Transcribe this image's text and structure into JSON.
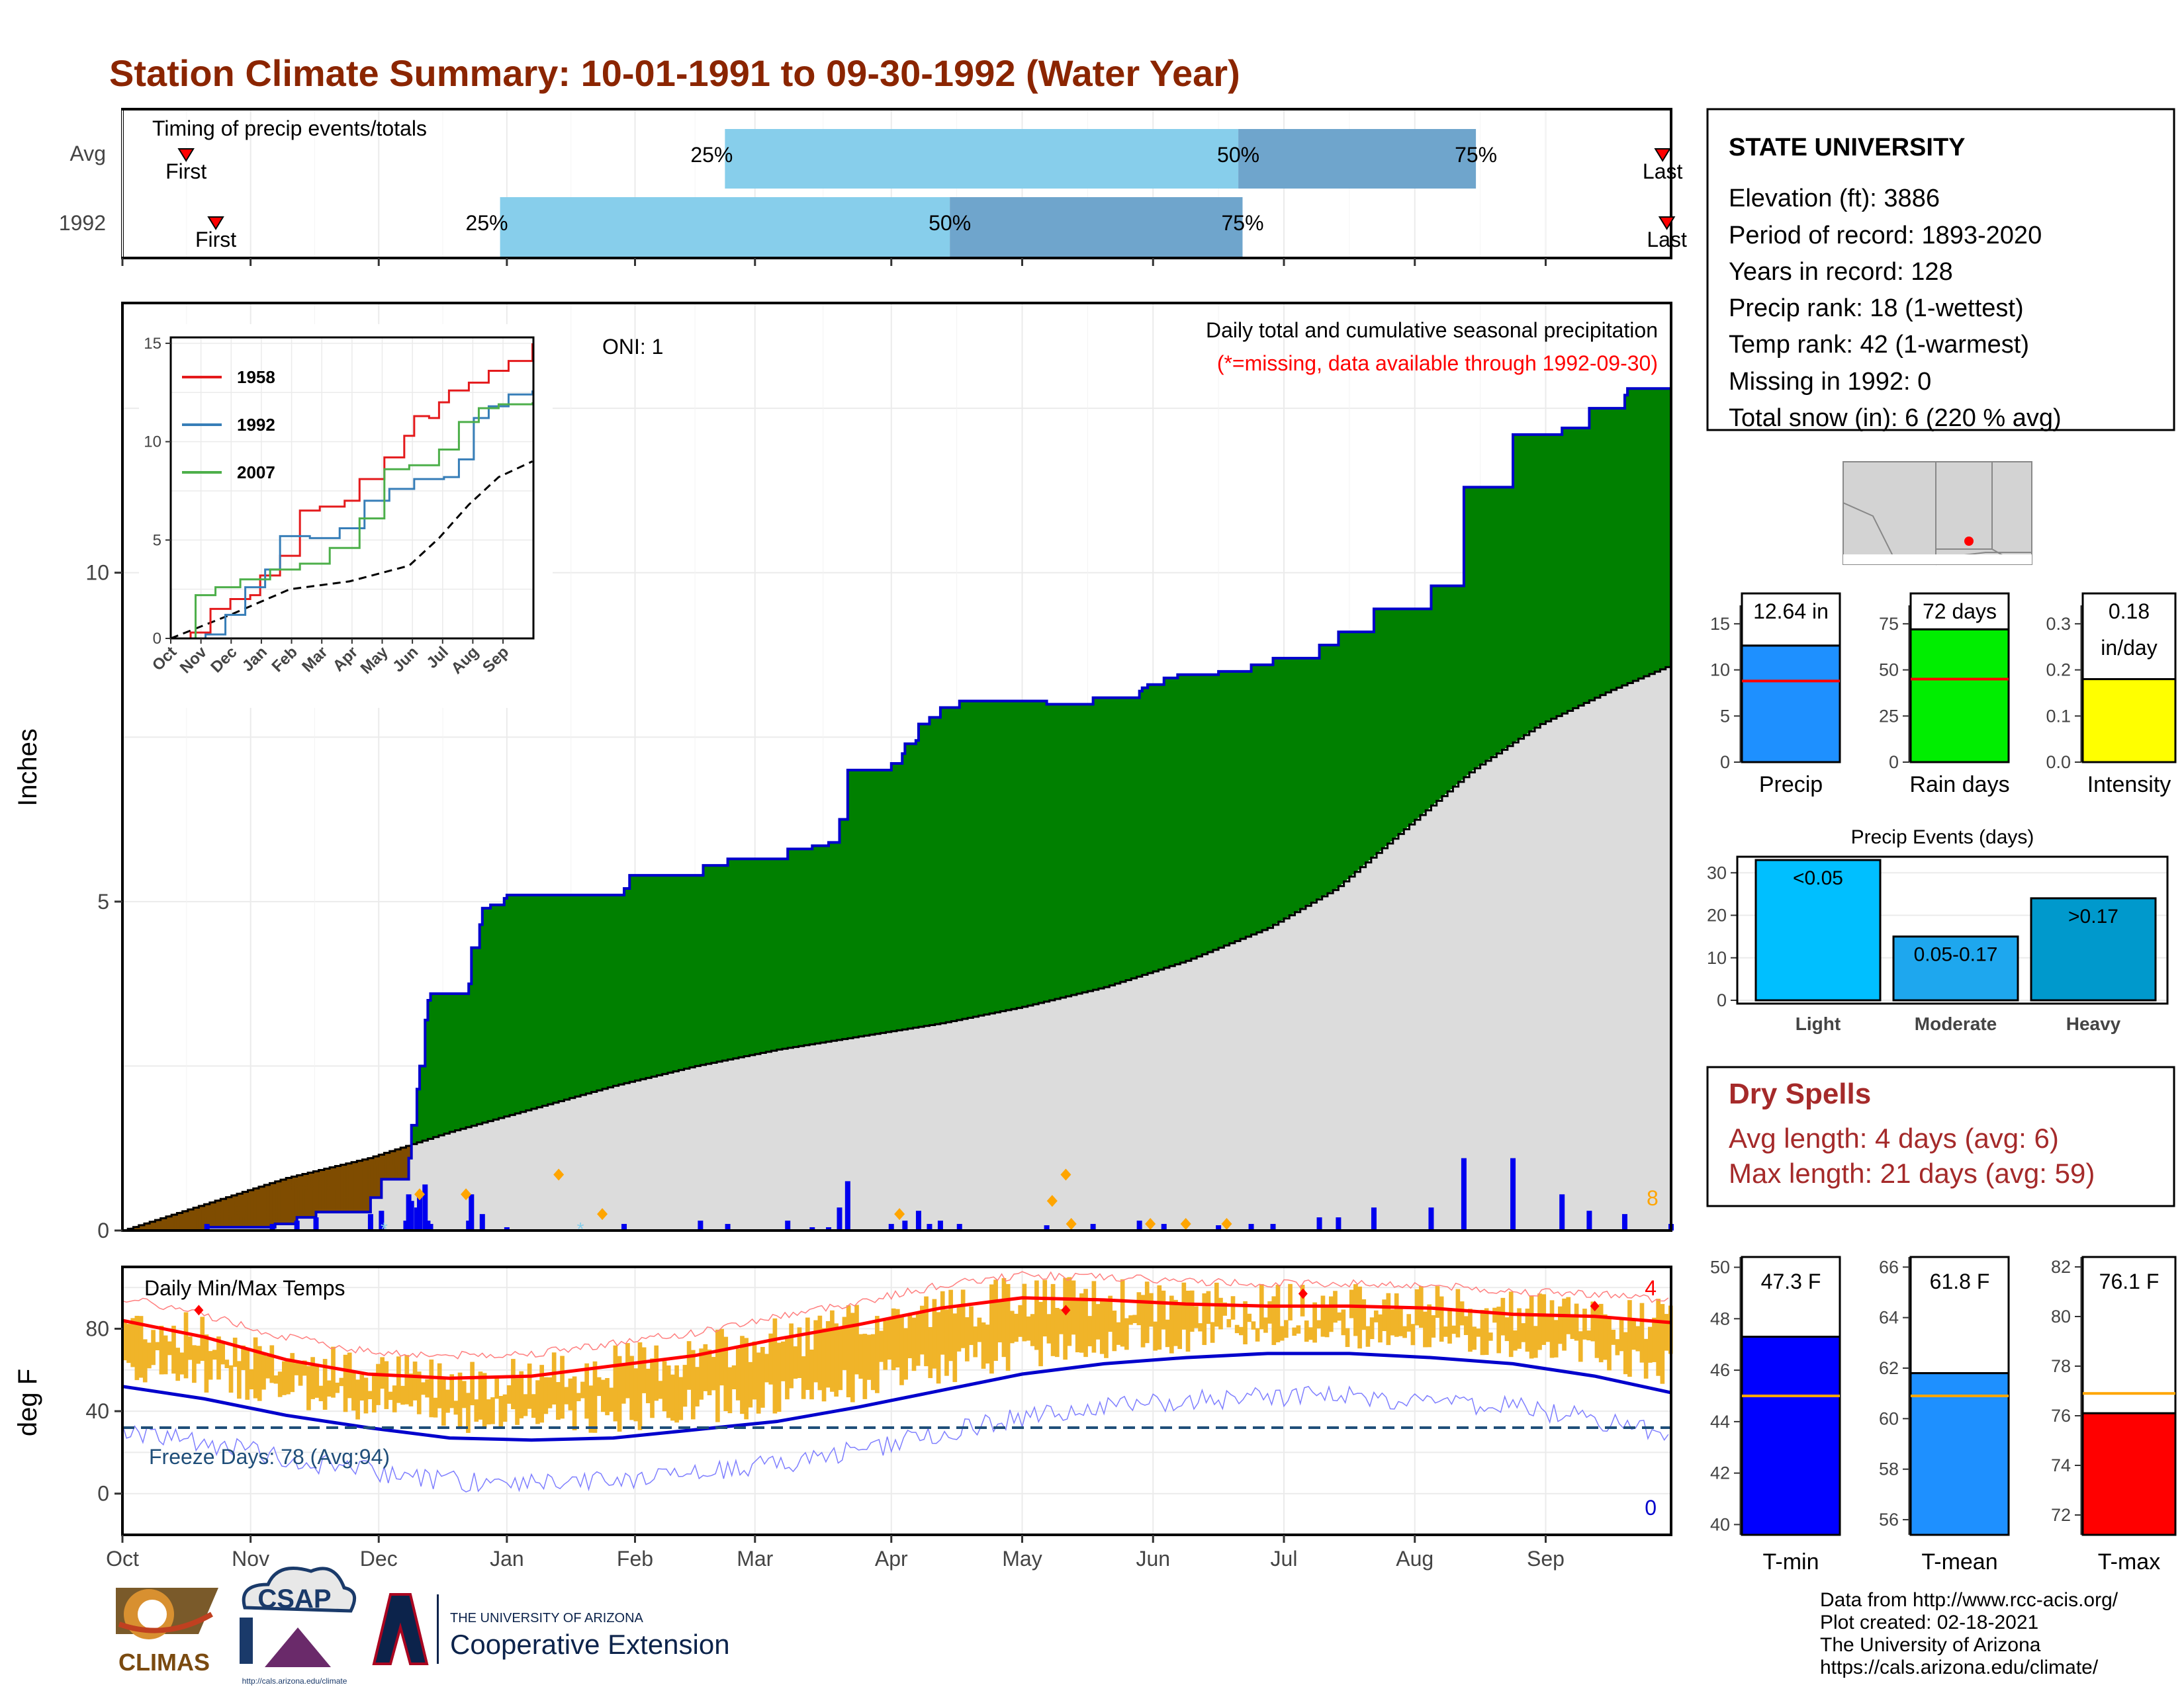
{
  "title": "Station Climate Summary: 10-01-1991 to 09-30-1992 (Water Year)",
  "colors": {
    "title": "#8b2500",
    "timing_light": "#87ceeb",
    "timing_dark": "#6fa5cc",
    "above_normal": "#008000",
    "below_normal": "#7f4c00",
    "normal_area": "#dcdcdc",
    "cumulative_line": "#0000cc",
    "daily_bar": "#0000ee",
    "snow_marker": "#ffa500",
    "temp_bar": "#f0b429",
    "normal_max": "#ff0000",
    "normal_min": "#0000cc",
    "freeze_line": "#1f4e79",
    "dry_spell_text": "#a52a2a"
  },
  "months": [
    "Oct",
    "Nov",
    "Dec",
    "Jan",
    "Feb",
    "Mar",
    "Apr",
    "May",
    "Jun",
    "Jul",
    "Aug",
    "Sep"
  ],
  "timing": {
    "label": "Timing of precip events/totals",
    "rows": [
      {
        "label": "Avg",
        "first_day": 15,
        "last_day": 363,
        "p25": 142,
        "p50": 263,
        "p75": 319,
        "first_label": "First",
        "last_label": "Last"
      },
      {
        "label": "1992",
        "first_day": 22,
        "last_day": 364,
        "p25": 89,
        "p50": 195,
        "p75": 264,
        "first_label": "First",
        "last_label": "Last"
      }
    ],
    "pct_labels": [
      "25%",
      "50%",
      "75%"
    ]
  },
  "precip_panel": {
    "ylabel": "Inches",
    "yticks": [
      0,
      5,
      10
    ],
    "ylim": [
      0,
      14.1
    ],
    "oni_label": "ONI: 1",
    "note_main": "Daily total and cumulative seasonal precipitation",
    "note_missing": "(*=missing, data available through 1992-09-30)",
    "snow_count_label": "8",
    "cumulative_steps": [
      [
        0,
        0
      ],
      [
        30,
        0
      ],
      [
        31,
        0.05
      ],
      [
        55,
        0.05
      ],
      [
        56,
        0.1
      ],
      [
        63,
        0.1
      ],
      [
        64,
        0.2
      ],
      [
        70,
        0.2
      ],
      [
        71,
        0.28
      ],
      [
        90,
        0.28
      ],
      [
        91,
        0.5
      ],
      [
        94,
        0.5
      ],
      [
        95,
        0.78
      ],
      [
        104,
        0.78
      ],
      [
        105,
        1.1
      ],
      [
        106,
        1.6
      ],
      [
        108,
        2.15
      ],
      [
        109,
        2.5
      ],
      [
        111,
        3.2
      ],
      [
        112,
        3.5
      ],
      [
        113,
        3.6
      ],
      [
        126,
        3.6
      ],
      [
        127,
        3.75
      ],
      [
        128,
        4.3
      ],
      [
        131,
        4.65
      ],
      [
        132,
        4.9
      ],
      [
        135,
        4.95
      ],
      [
        140,
        5.05
      ],
      [
        141,
        5.1
      ],
      [
        168,
        5.1
      ],
      [
        184,
        5.2
      ],
      [
        186,
        5.4
      ],
      [
        212,
        5.4
      ],
      [
        213,
        5.55
      ],
      [
        221,
        5.55
      ],
      [
        222,
        5.65
      ],
      [
        243,
        5.65
      ],
      [
        244,
        5.8
      ],
      [
        252,
        5.8
      ],
      [
        253,
        5.85
      ],
      [
        258,
        5.85
      ],
      [
        259,
        5.9
      ],
      [
        262,
        5.9
      ],
      [
        263,
        6.25
      ],
      [
        265,
        6.25
      ],
      [
        266,
        7.0
      ],
      [
        281,
        7.0
      ],
      [
        282,
        7.1
      ],
      [
        286,
        7.25
      ],
      [
        287,
        7.4
      ],
      [
        291,
        7.45
      ],
      [
        292,
        7.7
      ],
      [
        295,
        7.7
      ],
      [
        296,
        7.8
      ],
      [
        299,
        7.8
      ],
      [
        300,
        7.95
      ],
      [
        306,
        7.95
      ],
      [
        307,
        8.05
      ],
      [
        338,
        8.05
      ],
      [
        339,
        8.0
      ],
      [
        356,
        8.1
      ],
      [
        373,
        8.2
      ],
      [
        374,
        8.25
      ],
      [
        376,
        8.3
      ],
      [
        382,
        8.4
      ],
      [
        387,
        8.45
      ],
      [
        401,
        8.45
      ],
      [
        402,
        8.5
      ],
      [
        413,
        8.5
      ],
      [
        414,
        8.6
      ],
      [
        421,
        8.6
      ],
      [
        422,
        8.7
      ],
      [
        438,
        8.7
      ],
      [
        439,
        8.9
      ],
      [
        445,
        8.9
      ],
      [
        446,
        9.1
      ],
      [
        458,
        9.1
      ],
      [
        459,
        9.45
      ],
      [
        479,
        9.45
      ],
      [
        480,
        9.8
      ],
      [
        491,
        9.8
      ],
      [
        492,
        11.3
      ],
      [
        509,
        11.3
      ],
      [
        510,
        12.1
      ],
      [
        527,
        12.1
      ],
      [
        528,
        12.2
      ],
      [
        537,
        12.2
      ],
      [
        538,
        12.5
      ],
      [
        550,
        12.5
      ],
      [
        551,
        12.7
      ],
      [
        552,
        12.8
      ],
      [
        567,
        12.8
      ],
      [
        568,
        12.7
      ]
    ],
    "normal_cumulative": [
      [
        0,
        0
      ],
      [
        30,
        0.4
      ],
      [
        60,
        0.8
      ],
      [
        90,
        1.1
      ],
      [
        120,
        1.5
      ],
      [
        150,
        1.85
      ],
      [
        180,
        2.2
      ],
      [
        210,
        2.5
      ],
      [
        240,
        2.75
      ],
      [
        270,
        2.95
      ],
      [
        300,
        3.15
      ],
      [
        330,
        3.4
      ],
      [
        360,
        3.7
      ],
      [
        390,
        4.1
      ],
      [
        420,
        4.6
      ],
      [
        445,
        5.2
      ],
      [
        470,
        6.1
      ],
      [
        495,
        7.0
      ],
      [
        520,
        7.7
      ],
      [
        545,
        8.2
      ],
      [
        568,
        8.6
      ]
    ],
    "daily_bars": [
      [
        31,
        0.1
      ],
      [
        55,
        0.1
      ],
      [
        64,
        0.15
      ],
      [
        71,
        0.2
      ],
      [
        91,
        0.25
      ],
      [
        95,
        0.3
      ],
      [
        104,
        0.15
      ],
      [
        105,
        0.55
      ],
      [
        106,
        0.45
      ],
      [
        108,
        0.35
      ],
      [
        109,
        0.55
      ],
      [
        111,
        0.7
      ],
      [
        112,
        0.15
      ],
      [
        113,
        0.1
      ],
      [
        127,
        0.15
      ],
      [
        128,
        0.55
      ],
      [
        132,
        0.25
      ],
      [
        141,
        0.05
      ],
      [
        184,
        0.1
      ],
      [
        212,
        0.15
      ],
      [
        222,
        0.1
      ],
      [
        244,
        0.15
      ],
      [
        253,
        0.05
      ],
      [
        259,
        0.05
      ],
      [
        263,
        0.35
      ],
      [
        266,
        0.75
      ],
      [
        282,
        0.1
      ],
      [
        287,
        0.15
      ],
      [
        292,
        0.3
      ],
      [
        296,
        0.1
      ],
      [
        300,
        0.15
      ],
      [
        307,
        0.1
      ],
      [
        339,
        0.08
      ],
      [
        356,
        0.1
      ],
      [
        373,
        0.15
      ],
      [
        382,
        0.1
      ],
      [
        402,
        0.08
      ],
      [
        414,
        0.1
      ],
      [
        422,
        0.1
      ],
      [
        439,
        0.2
      ],
      [
        446,
        0.2
      ],
      [
        459,
        0.35
      ],
      [
        480,
        0.35
      ],
      [
        492,
        1.1
      ],
      [
        510,
        1.1
      ],
      [
        528,
        0.55
      ],
      [
        538,
        0.3
      ],
      [
        551,
        0.25
      ],
      [
        568,
        0.1
      ]
    ],
    "snow_markers": [
      [
        109,
        0.55
      ],
      [
        126,
        0.55
      ],
      [
        160,
        0.85
      ],
      [
        176,
        0.25
      ],
      [
        285,
        0.25
      ],
      [
        341,
        0.45
      ],
      [
        346,
        0.85
      ],
      [
        348,
        0.1
      ],
      [
        377,
        0.1
      ],
      [
        390,
        0.1
      ],
      [
        405,
        0.1
      ]
    ],
    "missing_markers": [
      [
        96,
        0.03
      ],
      [
        168,
        0.03
      ]
    ]
  },
  "inset": {
    "series": [
      {
        "name": "1958",
        "color": "#e41a1c",
        "values": [
          [
            0,
            0
          ],
          [
            20,
            0.3
          ],
          [
            40,
            1.5
          ],
          [
            60,
            2.0
          ],
          [
            80,
            2.2
          ],
          [
            90,
            3.2
          ],
          [
            110,
            4.2
          ],
          [
            130,
            6.5
          ],
          [
            150,
            6.7
          ],
          [
            175,
            7.0
          ],
          [
            190,
            8.1
          ],
          [
            215,
            9.2
          ],
          [
            235,
            10.3
          ],
          [
            245,
            11.3
          ],
          [
            260,
            11.2
          ],
          [
            270,
            12.0
          ],
          [
            280,
            12.6
          ],
          [
            300,
            13.0
          ],
          [
            320,
            13.6
          ],
          [
            340,
            14.1
          ],
          [
            364,
            15.0
          ]
        ]
      },
      {
        "name": "1992",
        "color": "#377eb8",
        "values": [
          [
            0,
            0
          ],
          [
            35,
            0.2
          ],
          [
            55,
            1.2
          ],
          [
            75,
            2.6
          ],
          [
            95,
            3.5
          ],
          [
            110,
            5.2
          ],
          [
            140,
            5.1
          ],
          [
            170,
            5.6
          ],
          [
            195,
            7.0
          ],
          [
            220,
            7.6
          ],
          [
            245,
            8.1
          ],
          [
            275,
            8.2
          ],
          [
            290,
            9.1
          ],
          [
            305,
            11.2
          ],
          [
            320,
            11.8
          ],
          [
            340,
            12.4
          ],
          [
            364,
            12.6
          ]
        ]
      },
      {
        "name": "2007",
        "color": "#4daf4a",
        "values": [
          [
            0,
            0
          ],
          [
            25,
            2.2
          ],
          [
            45,
            2.6
          ],
          [
            70,
            3.0
          ],
          [
            100,
            3.5
          ],
          [
            130,
            3.8
          ],
          [
            160,
            4.6
          ],
          [
            190,
            6.1
          ],
          [
            215,
            8.6
          ],
          [
            240,
            8.8
          ],
          [
            270,
            9.6
          ],
          [
            290,
            11.0
          ],
          [
            310,
            11.7
          ],
          [
            330,
            11.9
          ],
          [
            364,
            12.0
          ]
        ]
      }
    ],
    "normal": [
      [
        0,
        0
      ],
      [
        60,
        1.2
      ],
      [
        120,
        2.5
      ],
      [
        180,
        2.9
      ],
      [
        240,
        3.7
      ],
      [
        270,
        5.1
      ],
      [
        300,
        6.8
      ],
      [
        330,
        8.2
      ],
      [
        364,
        9.0
      ]
    ],
    "yticks": [
      0,
      5,
      10,
      15
    ],
    "months": [
      "Oct",
      "Nov",
      "Dec",
      "Jan",
      "Feb",
      "Mar",
      "Apr",
      "May",
      "Jun",
      "Jul",
      "Aug",
      "Sep"
    ]
  },
  "temp_panel": {
    "label": "Daily Min/Max Temps",
    "ylabel": "deg F",
    "yticks": [
      0,
      40,
      80
    ],
    "freeze_label": "Freeze Days: 78 (Avg:94)",
    "record_high_count": "4",
    "record_low_count": "0",
    "normal_max": [
      [
        0,
        84
      ],
      [
        30,
        76
      ],
      [
        60,
        65
      ],
      [
        90,
        58
      ],
      [
        120,
        56
      ],
      [
        150,
        57
      ],
      [
        180,
        62
      ],
      [
        210,
        67
      ],
      [
        240,
        75
      ],
      [
        270,
        82
      ],
      [
        300,
        90
      ],
      [
        330,
        95
      ],
      [
        360,
        94
      ],
      [
        390,
        92
      ],
      [
        420,
        91
      ],
      [
        450,
        91
      ],
      [
        480,
        90
      ],
      [
        510,
        87
      ],
      [
        540,
        86
      ],
      [
        568,
        83
      ]
    ],
    "normal_min": [
      [
        0,
        52
      ],
      [
        30,
        46
      ],
      [
        60,
        38
      ],
      [
        90,
        32
      ],
      [
        120,
        27
      ],
      [
        150,
        26
      ],
      [
        180,
        27
      ],
      [
        210,
        31
      ],
      [
        240,
        35
      ],
      [
        270,
        42
      ],
      [
        300,
        50
      ],
      [
        330,
        58
      ],
      [
        360,
        63
      ],
      [
        390,
        66
      ],
      [
        420,
        68
      ],
      [
        450,
        68
      ],
      [
        480,
        66
      ],
      [
        510,
        63
      ],
      [
        540,
        57
      ],
      [
        568,
        49
      ]
    ],
    "record_high_markers": [
      [
        28,
        89
      ],
      [
        346,
        89
      ],
      [
        433,
        97
      ],
      [
        540,
        91
      ]
    ]
  },
  "station": {
    "name": "STATE UNIVERSITY",
    "elevation": "Elevation (ft): 3886",
    "period": "Period of record: 1893-2020",
    "years": "Years in record: 128",
    "precip_rank": "Precip rank: 18 (1-wettest)",
    "temp_rank": "Temp rank: 42 (1-warmest)",
    "missing": "Missing in 1992: 0",
    "snow": "Total snow (in): 6 (220 % avg)"
  },
  "small_bars": [
    {
      "label": "Precip",
      "value_text": "12.64 in",
      "value": 12.64,
      "normal": 8.8,
      "yticks": [
        0,
        5,
        10,
        15
      ],
      "ymax": 17,
      "color": "#1e90ff"
    },
    {
      "label": "Rain days",
      "value_text": "72 days",
      "value": 72,
      "normal": 45,
      "yticks": [
        0,
        25,
        50,
        75
      ],
      "ymax": 85,
      "color": "#00ee00"
    },
    {
      "label": "Intensity",
      "value_text_1": "0.18",
      "value_text_2": "in/day",
      "value": 0.18,
      "normal": 0.195,
      "yticks": [
        "0.0",
        "0.1",
        "0.2",
        "0.3"
      ],
      "ymax": 0.34,
      "color": "#ffff00"
    }
  ],
  "precip_events": {
    "title": "Precip Events (days)",
    "yticks": [
      0,
      10,
      20,
      30
    ],
    "ymax": 33,
    "bars": [
      {
        "label": "Light",
        "bar_label": "<0.05",
        "value": 33,
        "color": "#00bfff"
      },
      {
        "label": "Moderate",
        "bar_label": "0.05-0.17",
        "value": 15,
        "color": "#1ea7ee"
      },
      {
        "label": "Heavy",
        "bar_label": ">0.17",
        "value": 24,
        "color": "#0099cc"
      }
    ]
  },
  "dry_spells": {
    "title": "Dry Spells",
    "avg": "Avg length: 4 days (avg: 6)",
    "max": "Max length: 21 days (avg: 59)"
  },
  "temp_bars": [
    {
      "label": "T-min",
      "value_text": "47.3 F",
      "value": 47.3,
      "normal": 45.0,
      "yticks": [
        40,
        42,
        44,
        46,
        48,
        50
      ],
      "ymin": 39.6,
      "ymax": 50.4,
      "color": "#0000ff"
    },
    {
      "label": "T-mean",
      "value_text": "61.8 F",
      "value": 61.8,
      "normal": 60.9,
      "yticks": [
        56,
        58,
        60,
        62,
        64,
        66
      ],
      "ymin": 55.4,
      "ymax": 66.4,
      "color": "#1e90ff"
    },
    {
      "label": "T-max",
      "value_text": "76.1 F",
      "value": 76.1,
      "normal": 76.9,
      "yticks": [
        72,
        74,
        76,
        78,
        80,
        82
      ],
      "ymin": 71.2,
      "ymax": 82.4,
      "color": "#ff0000"
    }
  ],
  "logos": {
    "climas": "CLIMAS",
    "csap": "CSAP",
    "csap_url": "http://cals.arizona.edu/climate",
    "ua_small": "THE UNIVERSITY OF ARIZONA",
    "ua_large": "Cooperative Extension"
  },
  "footer": [
    "Data from http://www.rcc-acis.org/",
    "Plot created: 02-18-2021",
    "The University of Arizona",
    "https://cals.arizona.edu/climate/"
  ]
}
